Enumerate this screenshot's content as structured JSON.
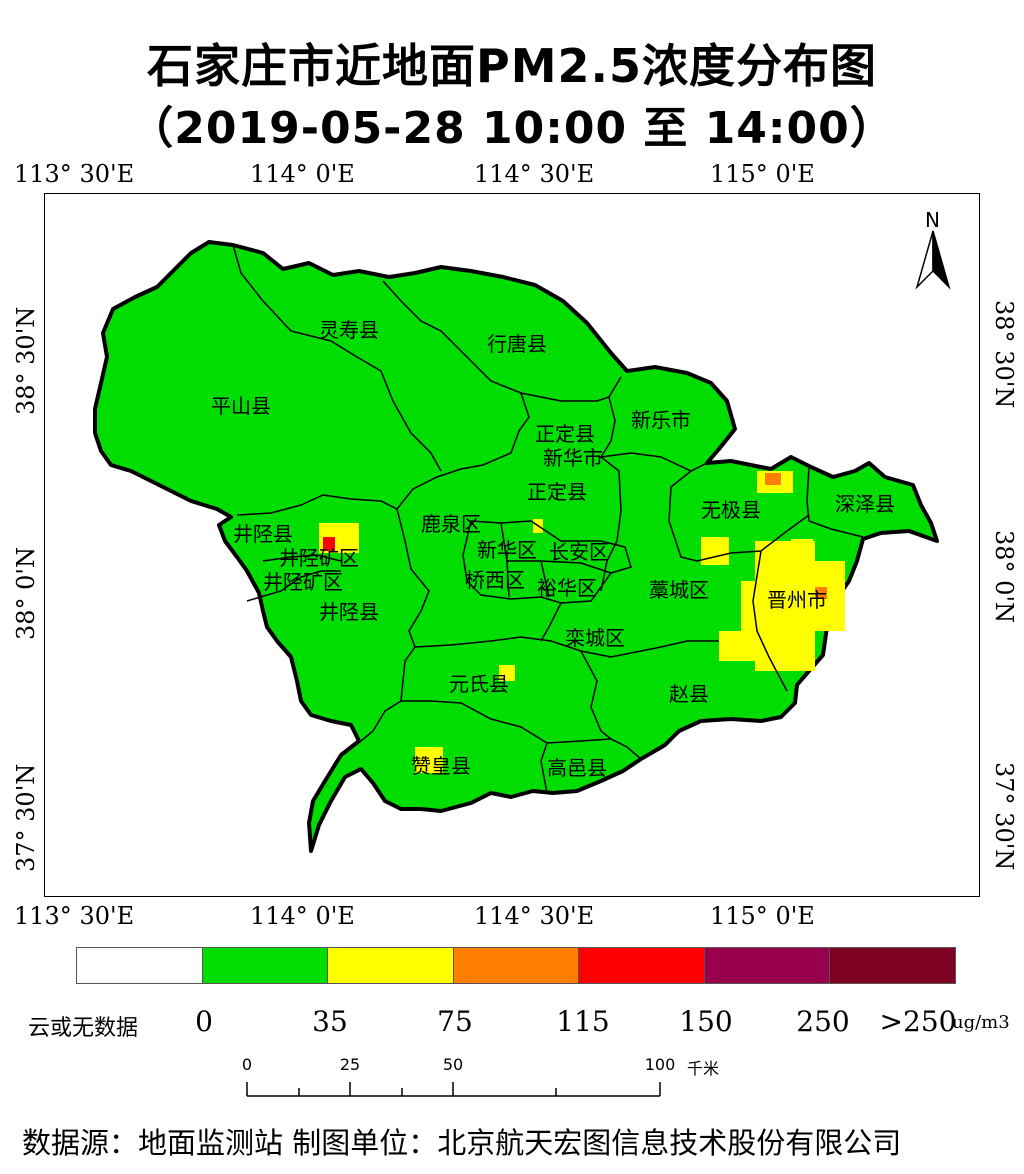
{
  "title": "石家庄市近地面PM2.5浓度分布图",
  "subtitle": "（2019-05-28 10:00 至 14:00）",
  "longitude_ticks": [
    "113° 30'E",
    "114° 0'E",
    "114° 30'E",
    "115° 0'E"
  ],
  "latitude_ticks": [
    "37° 30'N",
    "38° 0'N",
    "38° 30'N"
  ],
  "north_arrow": "N",
  "districts": [
    "灵寿县",
    "行唐县",
    "平山县",
    "新乐市",
    "正定县",
    "新华区",
    "井陉县",
    "鹿泉区",
    "新华区",
    "长安区",
    "井陉矿区",
    "井陉矿区",
    "桥西区",
    "裕华区",
    "藁城区",
    "晋州市",
    "无极县",
    "深泽县",
    "井陉县",
    "栾城区",
    "元氏县",
    "赵县",
    "赞皇县",
    "高邑县",
    "正定县",
    "新华市"
  ],
  "legend": {
    "nodata_label": "云或无数据",
    "colors": [
      "#ffffff",
      "#00dd00",
      "#ffff00",
      "#ff7e00",
      "#ff0000",
      "#99004c",
      "#7e0023"
    ],
    "ticks": [
      "0",
      "35",
      "75",
      "115",
      "150",
      "250",
      ">250"
    ],
    "unit": "ug/m3"
  },
  "scale_bar": {
    "labels": [
      "0",
      "25",
      "50",
      "100"
    ],
    "unit": "千米"
  },
  "footer": "数据源：地面监测站  制图单位：北京航天宏图信息技术股份有限公司"
}
